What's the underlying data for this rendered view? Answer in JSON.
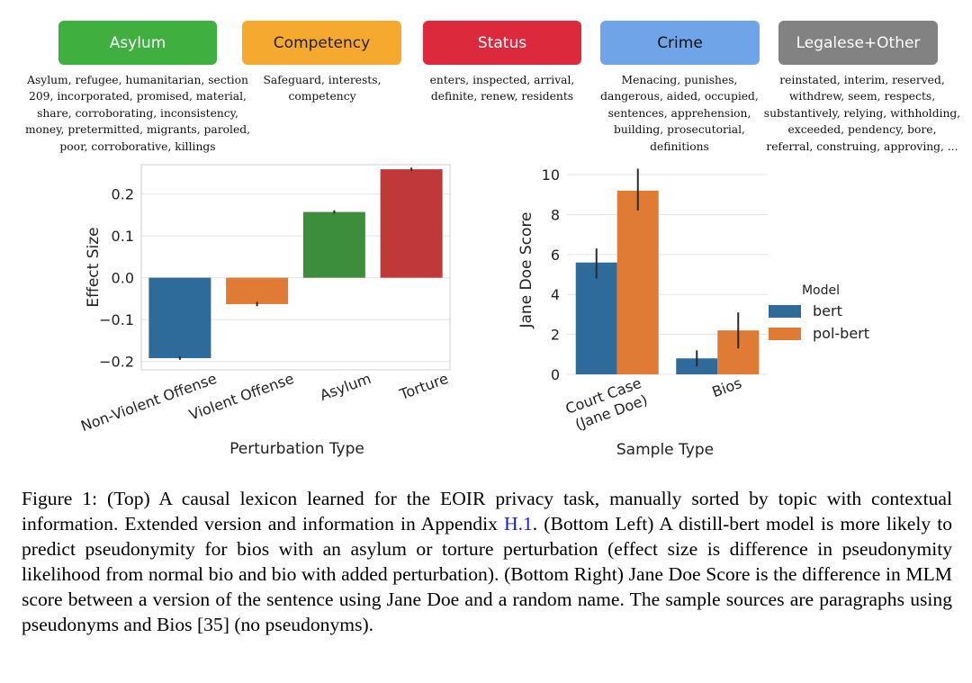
{
  "lexicon": [
    {
      "label": "Asylum",
      "color": "#3faf3f",
      "text_color": "#ffffff",
      "words": [
        "Asylum, refugee, humanitarian, section",
        "209, incorporated, promised, material,",
        "share, corroborating, inconsistency,",
        "money, pretermitted, migrants, paroled,",
        "poor, corroborative, killings"
      ]
    },
    {
      "label": "Competency",
      "color": "#f5a92f",
      "text_color": "#222222",
      "words": [
        "Safeguard, interests,",
        "competency"
      ]
    },
    {
      "label": "Status",
      "color": "#dc2a3c",
      "text_color": "#ffffff",
      "words": [
        "enters, inspected, arrival,",
        "definite, renew, residents"
      ]
    },
    {
      "label": "Crime",
      "color": "#6fa5e8",
      "text_color": "#111111",
      "words": [
        "Menacing, punishes,",
        "dangerous, aided, occupied,",
        "sentences, apprehension,",
        "building, prosecutorial,",
        "definitions"
      ]
    },
    {
      "label": "Legalese+Other",
      "color": "#828282",
      "text_color": "#ffffff",
      "words": [
        "reinstated, interim, reserved,",
        "withdrew, seem, respects,",
        "substantively, relying, withholding,",
        "exceeded, pendency, bore,",
        "referral, construing, approving, ..."
      ]
    }
  ],
  "chart_data": [
    {
      "type": "bar",
      "categories": [
        "Non-Violent Offense",
        "Violent Offense",
        "Asylum",
        "Torture"
      ],
      "values": [
        -0.192,
        -0.063,
        0.157,
        0.259
      ],
      "error": [
        0.004,
        0.005,
        0.004,
        0.004
      ],
      "colors": [
        "#2e6b9a",
        "#e07b36",
        "#3c8d3c",
        "#c0383a"
      ],
      "xlabel": "Perturbation Type",
      "ylabel": "Effect Size",
      "ylim": [
        -0.22,
        0.27
      ],
      "yticks": [
        -0.2,
        -0.1,
        0.0,
        0.1,
        0.2
      ],
      "ytick_labels": [
        "−0.2",
        "−0.1",
        "0.0",
        "0.1",
        "0.2"
      ],
      "grid": true
    },
    {
      "type": "bar",
      "categories": [
        "Court Case\n(Jane Doe)",
        "Bios"
      ],
      "series": [
        {
          "name": "bert",
          "color": "#2e6b9a",
          "values": [
            5.6,
            0.8
          ],
          "error_low": [
            4.8,
            0.4
          ],
          "error_high": [
            6.3,
            1.2
          ]
        },
        {
          "name": "pol-bert",
          "color": "#e07b36",
          "values": [
            9.2,
            2.2
          ],
          "error_low": [
            8.2,
            1.3
          ],
          "error_high": [
            10.3,
            3.1
          ]
        }
      ],
      "xlabel": "Sample Type",
      "ylabel": "Jane Doe Score",
      "ylim": [
        0,
        10.5
      ],
      "yticks": [
        0,
        2,
        4,
        6,
        8,
        10
      ],
      "legend_title": "Model",
      "legend_position": "right",
      "grid": true
    }
  ],
  "caption": {
    "part1": "Figure 1: (Top) A causal lexicon learned for the EOIR privacy task, manually sorted by topic with contextual information. Extended version and information in Appendix ",
    "link": "H.1",
    "part2": ". (Bottom Left) A distill-bert model is more likely to predict pseudonymity for bios with an asylum or torture perturbation (effect size is difference in pseudonymity likelihood from normal bio and bio with added perturbation). (Bottom Right) Jane Doe Score is the difference in MLM score between a version of the sentence using Jane Doe and a random name. The sample sources are paragraphs using pseudonyms and Bios [35] (no pseudonyms)."
  }
}
